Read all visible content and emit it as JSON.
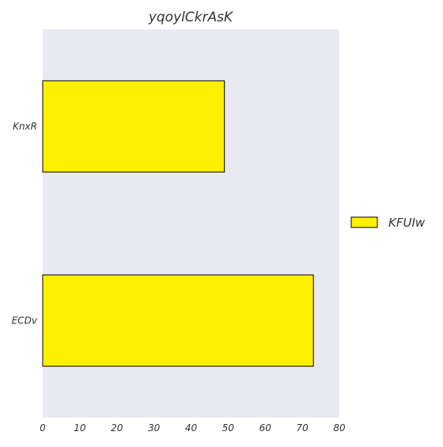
{
  "chart_data": {
    "type": "bar",
    "orientation": "horizontal",
    "title": "yqoylCkrAsK",
    "xlabel": "",
    "ylabel": "",
    "categories": [
      "KnxR",
      "ECDv"
    ],
    "series": [
      {
        "name": "KFUIw",
        "values": [
          49,
          73
        ],
        "color": "#fff000"
      }
    ],
    "xlim": [
      0,
      80
    ],
    "x_ticks": [
      "0",
      "10",
      "20",
      "30",
      "40",
      "50",
      "60",
      "70",
      "80"
    ],
    "grid": false,
    "legend_position": "center-right",
    "background_color": "#e9e9f1",
    "edge_color": "#000000"
  }
}
